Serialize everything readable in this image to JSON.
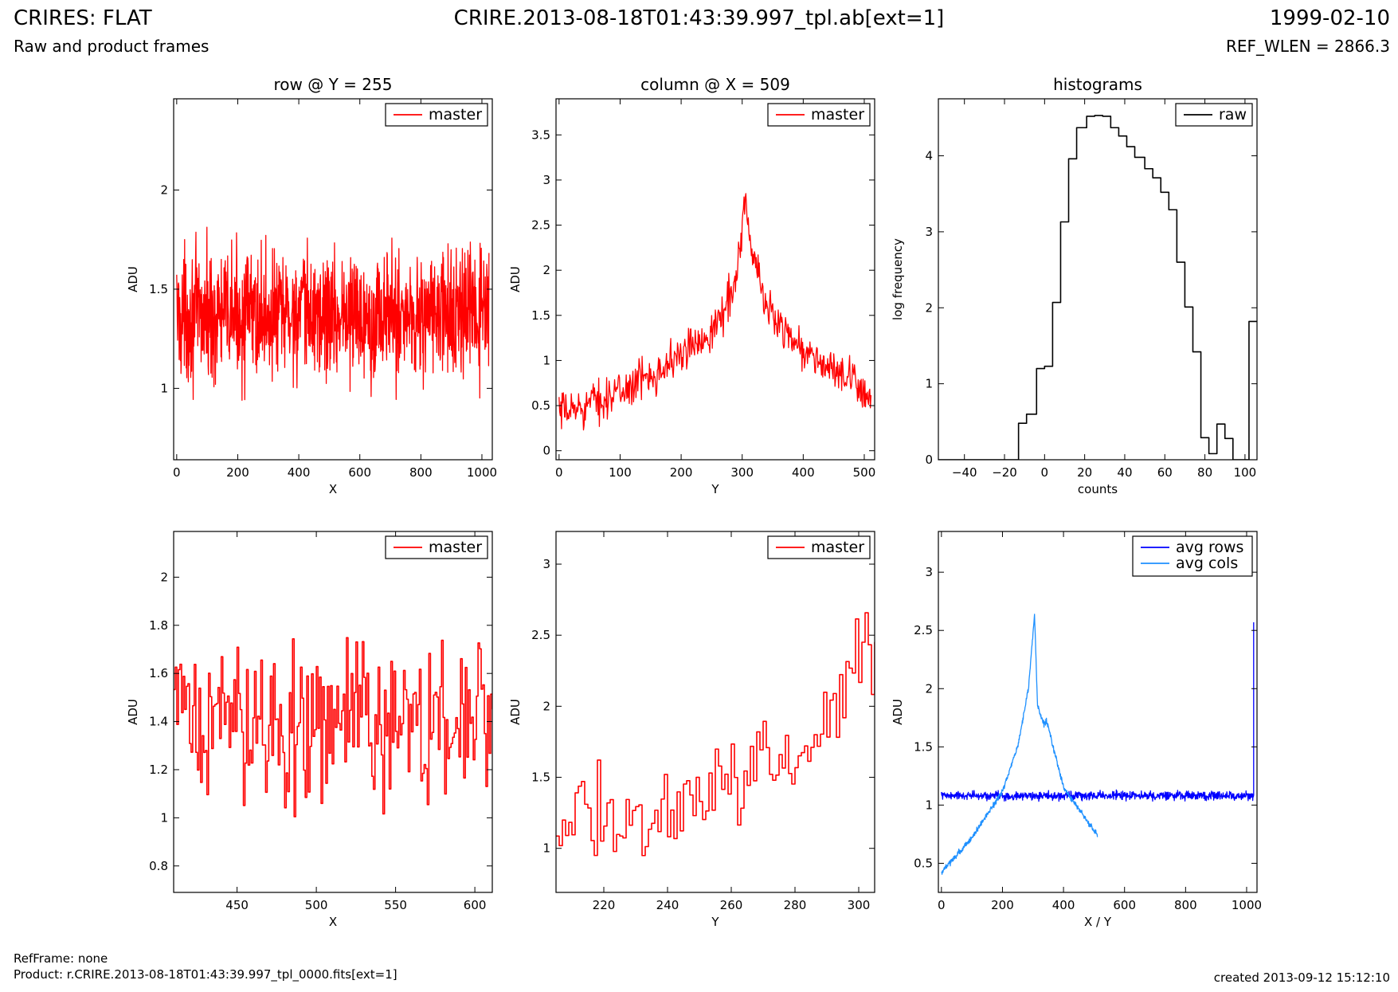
{
  "header": {
    "title_left": "CRIRES: FLAT",
    "subtitle_left": "Raw and product frames",
    "title_center": "CRIRE.2013-08-18T01:43:39.997_tpl.ab[ext=1]",
    "title_right": "1999-02-10",
    "subtitle_right": "REF_WLEN = 2866.3"
  },
  "footer": {
    "refframe": "RefFrame: none",
    "product": "Product: r.CRIRE.2013-08-18T01:43:39.997_tpl_0000.fits[ext=1]",
    "created": "created 2013-09-12 15:12:10"
  },
  "colors": {
    "master": "#ff0000",
    "raw": "#000000",
    "avg_rows": "#0000ff",
    "avg_cols": "#1e90ff"
  },
  "chart_data": [
    {
      "id": "row-plot",
      "type": "line",
      "title": "row @ Y = 255",
      "xlabel": "X",
      "ylabel": "ADU",
      "xlim": [
        -10,
        1034
      ],
      "ylim": [
        0.64,
        2.46
      ],
      "xticks": [
        0,
        200,
        400,
        600,
        800,
        1000
      ],
      "yticks": [
        1.0,
        1.5,
        2.0
      ],
      "grid": false,
      "legend_position": "top-right",
      "series": [
        {
          "name": "master",
          "color": "#ff0000",
          "style": "line",
          "generated": "noise",
          "x_start": 0,
          "x_end": 1023,
          "n": 1024,
          "mean": 1.37,
          "spread": 0.16,
          "min": 0.76,
          "max": 2.05
        }
      ]
    },
    {
      "id": "column-plot",
      "type": "line",
      "title": "column @ X = 509",
      "xlabel": "Y",
      "ylabel": "ADU",
      "xlim": [
        -5,
        517
      ],
      "ylim": [
        -0.1,
        3.9
      ],
      "xticks": [
        0,
        100,
        200,
        300,
        400,
        500
      ],
      "yticks": [
        0.0,
        0.5,
        1.0,
        1.5,
        2.0,
        2.5,
        3.0,
        3.5
      ],
      "grid": false,
      "legend_position": "top-right",
      "series": [
        {
          "name": "master",
          "color": "#ff0000",
          "style": "line",
          "generated": "profile",
          "x_start": 0,
          "x_end": 511,
          "n": 512,
          "spread": 0.11,
          "min": 0.2,
          "max": 3.05,
          "profile": [
            [
              0,
              0.4
            ],
            [
              100,
              0.65
            ],
            [
              200,
              1.05
            ],
            [
              260,
              1.4
            ],
            [
              290,
              1.9
            ],
            [
              305,
              2.8
            ],
            [
              315,
              2.2
            ],
            [
              340,
              1.6
            ],
            [
              400,
              1.1
            ],
            [
              511,
              0.62
            ]
          ]
        }
      ]
    },
    {
      "id": "histogram-plot",
      "type": "line",
      "title": "histograms",
      "xlabel": "counts",
      "ylabel": "log frequency",
      "xlim": [
        -53,
        106
      ],
      "ylim": [
        0,
        4.75
      ],
      "xticks": [
        -40,
        -20,
        0,
        20,
        40,
        60,
        80,
        100
      ],
      "yticks": [
        0,
        1,
        2,
        3,
        4
      ],
      "grid": false,
      "legend_position": "top-right",
      "series": [
        {
          "name": "raw",
          "color": "#000000",
          "style": "steps",
          "x": [
            -53,
            -17,
            -13,
            -9,
            -4,
            0,
            4,
            8,
            12,
            16,
            21,
            25,
            29,
            33,
            37,
            41,
            45,
            50,
            54,
            58,
            62,
            66,
            70,
            74,
            78,
            82,
            86,
            90,
            94,
            98,
            102
          ],
          "y": [
            0,
            0,
            0.48,
            0.6,
            1.2,
            1.23,
            2.07,
            3.13,
            3.96,
            4.37,
            4.52,
            4.53,
            4.52,
            4.37,
            4.26,
            4.12,
            3.98,
            3.83,
            3.71,
            3.52,
            3.29,
            2.6,
            2.01,
            1.42,
            0.29,
            0.08,
            0.47,
            0.28,
            0,
            0,
            1.82
          ]
        }
      ]
    },
    {
      "id": "row-zoom-plot",
      "type": "line",
      "title": "",
      "xlabel": "X",
      "ylabel": "ADU",
      "xlim": [
        410,
        611
      ],
      "ylim": [
        0.69,
        2.19
      ],
      "xticks": [
        450,
        500,
        550,
        600
      ],
      "yticks": [
        0.8,
        1.0,
        1.2,
        1.4,
        1.6,
        1.8,
        2.0
      ],
      "grid": false,
      "legend_position": "top-right",
      "series": [
        {
          "name": "master",
          "color": "#ff0000",
          "style": "steps",
          "generated": "noise",
          "x_start": 410,
          "x_end": 611,
          "n": 202,
          "mean": 1.4,
          "spread": 0.17,
          "min": 0.8,
          "max": 1.86
        }
      ]
    },
    {
      "id": "column-zoom-plot",
      "type": "line",
      "title": "",
      "xlabel": "Y",
      "ylabel": "ADU",
      "xlim": [
        205,
        305
      ],
      "ylim": [
        0.69,
        3.23
      ],
      "xticks": [
        220,
        240,
        260,
        280,
        300
      ],
      "yticks": [
        1.0,
        1.5,
        2.0,
        2.5,
        3.0
      ],
      "grid": false,
      "legend_position": "top-right",
      "series": [
        {
          "name": "master",
          "color": "#ff0000",
          "style": "steps",
          "generated": "profile",
          "x_start": 205,
          "x_end": 305,
          "n": 101,
          "spread": 0.16,
          "min": 0.88,
          "max": 2.66,
          "profile": [
            [
              205,
              1.2
            ],
            [
              240,
              1.25
            ],
            [
              260,
              1.45
            ],
            [
              280,
              1.7
            ],
            [
              290,
              1.85
            ],
            [
              300,
              2.35
            ],
            [
              305,
              2.5
            ]
          ]
        }
      ]
    },
    {
      "id": "average-plot",
      "type": "line",
      "title": "",
      "xlabel": "X / Y",
      "ylabel": "ADU",
      "xlim": [
        -10,
        1034
      ],
      "ylim": [
        0.25,
        3.35
      ],
      "xticks": [
        0,
        200,
        400,
        600,
        800,
        1000
      ],
      "yticks": [
        0.5,
        1.0,
        1.5,
        2.0,
        2.5,
        3.0
      ],
      "grid": false,
      "legend_position": "top-right",
      "series": [
        {
          "name": "avg rows",
          "color": "#0000ff",
          "style": "line",
          "generated": "noise",
          "x_start": 0,
          "x_end": 1023,
          "n": 1024,
          "mean": 1.08,
          "spread": 0.018,
          "min": 0.98,
          "max": 1.13,
          "spike": {
            "x": 1023,
            "y": 2.57
          }
        },
        {
          "name": "avg cols",
          "color": "#1e90ff",
          "style": "line",
          "generated": "profile",
          "x_start": 0,
          "x_end": 511,
          "n": 512,
          "spread": 0.012,
          "min": 0.4,
          "max": 2.65,
          "profile": [
            [
              0,
              0.42
            ],
            [
              100,
              0.72
            ],
            [
              200,
              1.12
            ],
            [
              250,
              1.5
            ],
            [
              285,
              2.0
            ],
            [
              305,
              2.64
            ],
            [
              315,
              1.85
            ],
            [
              335,
              1.7
            ],
            [
              345,
              1.72
            ],
            [
              400,
              1.15
            ],
            [
              511,
              0.74
            ]
          ]
        }
      ]
    }
  ]
}
